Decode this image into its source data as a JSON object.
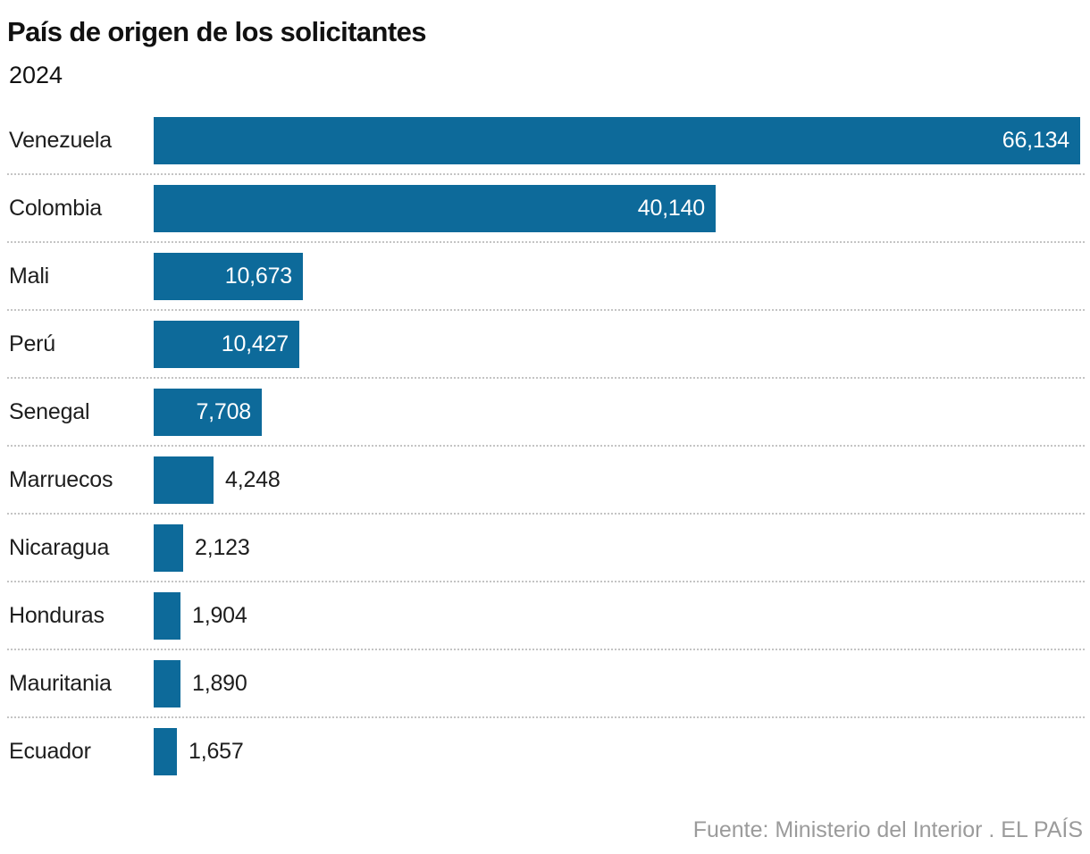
{
  "title": "País de origen de los solicitantes",
  "subtitle": "2024",
  "source": "Fuente: Ministerio del Interior . EL PAÍS",
  "colors": {
    "bar": "#0d6a9a",
    "value_inside": "#ffffff",
    "value_outside": "#1d1d1d",
    "category_label": "#1d1d1d",
    "title": "#111111",
    "separator": "#c4c4c4",
    "source_text": "#9b9b9b",
    "background": "#ffffff"
  },
  "chart_data": {
    "type": "bar",
    "orientation": "horizontal",
    "title": "País de origen de los solicitantes",
    "subtitle": "2024",
    "xlabel": "",
    "ylabel": "",
    "categories": [
      "Venezuela",
      "Colombia",
      "Mali",
      "Perú",
      "Senegal",
      "Marruecos",
      "Nicaragua",
      "Honduras",
      "Mauritania",
      "Ecuador"
    ],
    "values": [
      66134,
      40140,
      10673,
      10427,
      7708,
      4248,
      2123,
      1904,
      1890,
      1657
    ],
    "value_labels": [
      "66,134",
      "40,140",
      "10,673",
      "10,427",
      "7,708",
      "4,248",
      "2,123",
      "1,904",
      "1,890",
      "1,657"
    ],
    "xlim": [
      0,
      66134
    ],
    "grid": false,
    "legend": false,
    "axes_shown": false,
    "row_separator_style": "dotted",
    "value_label_placement": "inside bar when bar is wide enough, otherwise outside right of bar"
  }
}
